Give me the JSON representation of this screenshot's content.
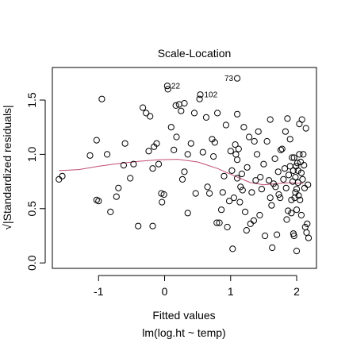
{
  "chart_data": {
    "type": "scatter",
    "title": "Scale-Location",
    "xlabel": "Fitted values",
    "sublabel": "lm(log.ht ~ temp)",
    "ylabel": "√|Standardized residuals|",
    "xlim": [
      -1.7,
      2.3
    ],
    "ylim": [
      -0.05,
      1.8
    ],
    "xticks": [
      -1,
      0,
      1,
      2
    ],
    "yticks": [
      0.0,
      0.5,
      1.0,
      1.5
    ],
    "xtick_labels": [
      "-1",
      "0",
      "1",
      "2"
    ],
    "ytick_labels": [
      "0.0",
      "0.5",
      "1.0",
      "1.5"
    ],
    "grid": false,
    "annotations": [
      {
        "text": "73",
        "x": 1.1,
        "y": 1.7
      },
      {
        "text": "22",
        "x": 0.04,
        "y": 1.63
      },
      {
        "text": "102",
        "x": 0.54,
        "y": 1.55
      }
    ],
    "smooth": {
      "color": "#c04d6e",
      "x": [
        -1.6,
        -1.3,
        -1.0,
        -0.7,
        -0.4,
        -0.1,
        0.2,
        0.5,
        0.8,
        1.1,
        1.3,
        1.5,
        1.7,
        1.9,
        2.1
      ],
      "y": [
        0.85,
        0.86,
        0.89,
        0.915,
        0.935,
        0.95,
        0.955,
        0.93,
        0.87,
        0.79,
        0.74,
        0.72,
        0.73,
        0.74,
        0.73
      ]
    },
    "points": [
      [
        -1.6,
        0.77
      ],
      [
        -1.55,
        0.8
      ],
      [
        -1.13,
        0.99
      ],
      [
        -1.03,
        0.58
      ],
      [
        -1.0,
        0.57
      ],
      [
        -1.03,
        1.13
      ],
      [
        -0.95,
        1.51
      ],
      [
        -0.87,
        1.0
      ],
      [
        -0.82,
        0.47
      ],
      [
        -0.73,
        0.61
      ],
      [
        -0.7,
        0.69
      ],
      [
        -0.62,
        0.9
      ],
      [
        -0.6,
        1.1
      ],
      [
        -0.52,
        0.78
      ],
      [
        -0.47,
        0.91
      ],
      [
        -0.4,
        0.34
      ],
      [
        -0.33,
        1.43
      ],
      [
        -0.28,
        1.38
      ],
      [
        -0.22,
        1.35
      ],
      [
        -0.24,
        1.03
      ],
      [
        -0.18,
        0.87
      ],
      [
        -0.18,
        0.34
      ],
      [
        -0.16,
        1.07
      ],
      [
        -0.12,
        1.1
      ],
      [
        -0.09,
        0.91
      ],
      [
        -0.05,
        0.64
      ],
      [
        -0.04,
        0.56
      ],
      [
        -0.01,
        0.63
      ],
      [
        0.05,
        1.6
      ],
      [
        0.1,
        1.25
      ],
      [
        0.14,
        1.04
      ],
      [
        0.17,
        1.45
      ],
      [
        0.18,
        1.16
      ],
      [
        0.22,
        1.46
      ],
      [
        0.25,
        1.4
      ],
      [
        0.27,
        0.77
      ],
      [
        0.3,
        0.84
      ],
      [
        0.3,
        1.47
      ],
      [
        0.35,
        1.0
      ],
      [
        0.35,
        0.46
      ],
      [
        0.4,
        1.1
      ],
      [
        0.45,
        1.38
      ],
      [
        0.47,
        0.64
      ],
      [
        0.53,
        1.51
      ],
      [
        0.58,
        1.02
      ],
      [
        0.63,
        1.34
      ],
      [
        0.65,
        0.7
      ],
      [
        0.68,
        0.64
      ],
      [
        0.72,
        1.14
      ],
      [
        0.74,
        0.98
      ],
      [
        0.76,
        1.11
      ],
      [
        0.79,
        0.37
      ],
      [
        0.8,
        1.38
      ],
      [
        0.83,
        0.37
      ],
      [
        0.86,
        0.49
      ],
      [
        0.88,
        0.65
      ],
      [
        0.9,
        0.8
      ],
      [
        0.93,
        1.27
      ],
      [
        0.95,
        0.33
      ],
      [
        0.98,
        0.57
      ],
      [
        1.0,
        1.03
      ],
      [
        1.02,
        0.85
      ],
      [
        1.03,
        0.13
      ],
      [
        1.05,
        0.6
      ],
      [
        1.07,
        1.09
      ],
      [
        1.08,
        1.0
      ],
      [
        1.1,
        1.37
      ],
      [
        1.1,
        0.95
      ],
      [
        1.1,
        0.78
      ],
      [
        1.12,
        1.05
      ],
      [
        1.14,
        0.56
      ],
      [
        1.15,
        0.7
      ],
      [
        1.17,
        0.82
      ],
      [
        1.18,
        0.67
      ],
      [
        1.2,
        1.25
      ],
      [
        1.22,
        0.47
      ],
      [
        1.24,
        0.3
      ],
      [
        1.25,
        0.88
      ],
      [
        1.28,
        1.16
      ],
      [
        1.3,
        0.36
      ],
      [
        1.32,
        0.65
      ],
      [
        1.35,
        0.39
      ],
      [
        1.36,
        1.12
      ],
      [
        1.38,
        0.76
      ],
      [
        1.4,
        1.0
      ],
      [
        1.42,
        1.21
      ],
      [
        1.44,
        0.44
      ],
      [
        1.45,
        0.79
      ],
      [
        1.47,
        0.68
      ],
      [
        1.5,
        0.91
      ],
      [
        1.52,
        0.25
      ],
      [
        1.55,
        1.12
      ],
      [
        1.58,
        0.76
      ],
      [
        1.6,
        0.6
      ],
      [
        1.6,
        1.32
      ],
      [
        1.62,
        0.53
      ],
      [
        1.63,
        0.14
      ],
      [
        1.65,
        0.73
      ],
      [
        1.67,
        0.96
      ],
      [
        1.68,
        0.7
      ],
      [
        1.7,
        0.26
      ],
      [
        1.72,
        0.84
      ],
      [
        1.73,
        0.63
      ],
      [
        1.75,
        0.6
      ],
      [
        1.76,
        1.04
      ],
      [
        1.78,
        1.05
      ],
      [
        1.8,
        0.77
      ],
      [
        1.82,
        0.87
      ],
      [
        1.83,
        1.21
      ],
      [
        1.84,
        0.69
      ],
      [
        1.85,
        0.4
      ],
      [
        1.86,
        1.33
      ],
      [
        1.87,
        0.48
      ],
      [
        1.88,
        0.81
      ],
      [
        1.9,
        0.89
      ],
      [
        1.9,
        1.14
      ],
      [
        1.92,
        0.46
      ],
      [
        1.92,
        0.58
      ],
      [
        1.93,
        0.97
      ],
      [
        1.94,
        0.75
      ],
      [
        1.95,
        0.85
      ],
      [
        1.95,
        0.27
      ],
      [
        1.96,
        0.97
      ],
      [
        1.96,
        0.25
      ],
      [
        1.97,
        0.6
      ],
      [
        1.98,
        0.65
      ],
      [
        1.98,
        0.79
      ],
      [
        1.99,
        0.89
      ],
      [
        2.0,
        0.68
      ],
      [
        2.0,
        0.49
      ],
      [
        2.0,
        0.11
      ],
      [
        2.01,
        0.92
      ],
      [
        2.02,
        0.85
      ],
      [
        2.02,
        0.74
      ],
      [
        2.03,
        0.62
      ],
      [
        2.04,
        1.0
      ],
      [
        2.04,
        1.28
      ],
      [
        2.05,
        0.58
      ],
      [
        2.06,
        0.93
      ],
      [
        2.07,
        0.83
      ],
      [
        2.07,
        0.44
      ],
      [
        2.08,
        1.32
      ],
      [
        2.09,
        0.77
      ],
      [
        2.1,
        1.0
      ],
      [
        2.11,
        0.9
      ],
      [
        2.12,
        0.69
      ],
      [
        2.13,
        0.33
      ],
      [
        2.14,
        1.24
      ],
      [
        2.15,
        0.28
      ],
      [
        2.16,
        0.36
      ],
      [
        2.17,
        0.72
      ],
      [
        2.18,
        0.23
      ]
    ]
  }
}
